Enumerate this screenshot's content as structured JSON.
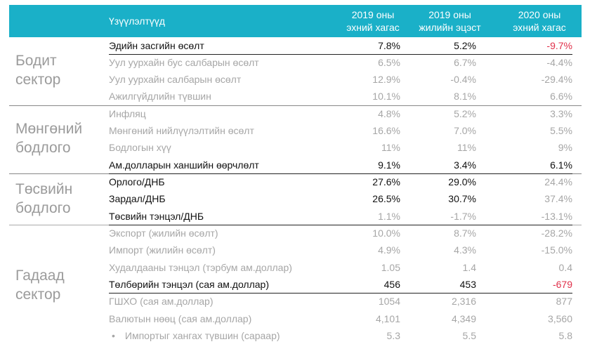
{
  "header": {
    "indicators_label": "Үзүүлэлтүүд",
    "col1_line1": "2019 оны",
    "col1_line2": "эхний хагас",
    "col2_line1": "2019 оны",
    "col2_line2": "жилийн эцэст",
    "col3_line1": "2020 оны",
    "col3_line2": "эхний хагас"
  },
  "sections": {
    "real": {
      "line1": "Бодит",
      "line2": "сектор"
    },
    "monetary": {
      "line1": "Мөнгөний",
      "line2": "бодлого"
    },
    "fiscal": {
      "line1": "Төсвийн",
      "line2": "бодлого"
    },
    "external": {
      "line1": "Гадаад",
      "line2": "сектор"
    }
  },
  "rows": [
    {
      "name": "Эдийн засгийн өсөлт",
      "v1": "7.8%",
      "v2": "5.2%",
      "v3": "-9.7%"
    },
    {
      "name": "Уул уурхайн бус салбарын өсөлт",
      "v1": "6.5%",
      "v2": "6.7%",
      "v3": "-4.4%"
    },
    {
      "name": "Уул уурхайн салбарын өсөлт",
      "v1": "12.9%",
      "v2": "-0.4%",
      "v3": "-29.4%"
    },
    {
      "name": "Ажилгүйдлийн түвшин",
      "v1": "10.1%",
      "v2": "8.1%",
      "v3": "6.6%"
    },
    {
      "name": "Инфляц",
      "v1": "4.8%",
      "v2": "5.2%",
      "v3": "3.3%"
    },
    {
      "name": "Мөнгөний нийлүүлэлтийн өсөлт",
      "v1": "16.6%",
      "v2": "7.0%",
      "v3": "5.5%"
    },
    {
      "name": "Бодлогын хүү",
      "v1": "11%",
      "v2": "11%",
      "v3": "9%"
    },
    {
      "name": "Ам.долларын ханшийн өөрчлөлт",
      "v1": "9.1%",
      "v2": "3.4%",
      "v3": "6.1%"
    },
    {
      "name": "Орлого/ДНБ",
      "v1": "27.6%",
      "v2": "29.0%",
      "v3": "24.4%"
    },
    {
      "name": "Зардал/ДНБ",
      "v1": "26.5%",
      "v2": "30.7%",
      "v3": "37.4%"
    },
    {
      "name": "Төсвийн тэнцэл/ДНБ",
      "v1": "1.1%",
      "v2": "-1.7%",
      "v3": "-13.1%"
    },
    {
      "name": "Экспорт (жилийн өсөлт)",
      "v1": "10.0%",
      "v2": "8.7%",
      "v3": "-28.2%"
    },
    {
      "name": "Импорт (жилийн өсөлт)",
      "v1": "4.9%",
      "v2": "4.3%",
      "v3": "-15.0%"
    },
    {
      "name": "Худалдааны тэнцэл (тэрбум ам.доллар)",
      "v1": "1.05",
      "v2": "1.4",
      "v3": "0.4"
    },
    {
      "name": "Төлбөрийн тэнцэл (сая ам.доллар)",
      "v1": "456",
      "v2": "453",
      "v3": "-679"
    },
    {
      "name": "ГШХО (сая ам.доллар)",
      "v1": "1054",
      "v2": "2,316",
      "v3": "877"
    },
    {
      "name": "Валютын нөөц (сая ам.доллар)",
      "v1": "4,101",
      "v2": "4,349",
      "v3": "3,560"
    },
    {
      "name": "Импортыг хангах түвшин (сараар)",
      "v1": "5.3",
      "v2": "5.5",
      "v3": "5.8",
      "bullet": "•"
    }
  ],
  "colors": {
    "header_bg": "#1ab0c8",
    "negative": "#e0304a",
    "muted": "#a6a6a6"
  }
}
